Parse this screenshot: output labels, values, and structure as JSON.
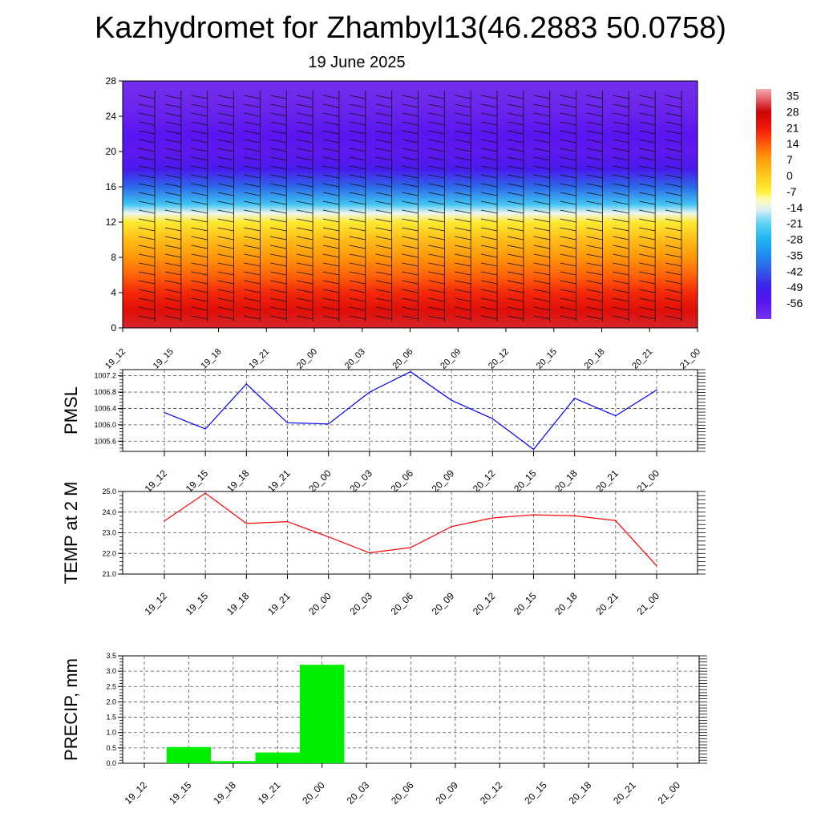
{
  "title": "Kazhydromet for Zhambyl13(46.2883 50.0758)",
  "subtitle": "19 June 2025",
  "time_labels": [
    "19_12",
    "19_15",
    "19_18",
    "19_21",
    "20_00",
    "20_03",
    "20_06",
    "20_09",
    "20_12",
    "20_15",
    "20_18",
    "20_21",
    "21_00"
  ],
  "chart_data": [
    {
      "type": "heatmap",
      "panel": "vertical-section",
      "x": [
        "19_12",
        "19_15",
        "19_18",
        "19_21",
        "20_00",
        "20_03",
        "20_06",
        "20_09",
        "20_12",
        "20_15",
        "20_18",
        "20_21",
        "21_00"
      ],
      "yticks": [
        0,
        4,
        8,
        12,
        16,
        20,
        24,
        28
      ],
      "ylim": [
        0,
        28
      ],
      "colorbar": {
        "labels": [
          "35",
          "28",
          "21",
          "14",
          "7",
          "0",
          "-7",
          "-14",
          "-21",
          "-28",
          "-35",
          "-42",
          "-49",
          "-56"
        ],
        "range": [
          -63,
          38
        ]
      },
      "temperature_profile": {
        "heights": [
          0,
          2,
          4,
          6,
          8,
          10,
          12,
          13,
          14,
          16,
          18,
          20,
          22,
          24,
          26,
          28
        ],
        "values": [
          30,
          24,
          19,
          13,
          8,
          2,
          -6,
          -14,
          -24,
          -40,
          -52,
          -57,
          -56,
          -59,
          -61,
          -62
        ]
      },
      "wind_barbs": true
    },
    {
      "type": "line",
      "panel": "pmsl",
      "ylabel": "PMSL",
      "x": [
        "19_12",
        "19_15",
        "19_18",
        "19_21",
        "20_00",
        "20_03",
        "20_06",
        "20_09",
        "20_12",
        "20_15",
        "20_18",
        "20_21",
        "21_00"
      ],
      "series": [
        {
          "values": [
            1006.3,
            1005.9,
            1007.0,
            1006.05,
            1006.02,
            1006.8,
            1007.3,
            1006.6,
            1006.15,
            1005.4,
            1006.65,
            1006.22,
            1006.85
          ],
          "color": "#0000ff"
        }
      ],
      "yticks": [
        "1005.6",
        "1006.0",
        "1006.4",
        "1006.8",
        "1007.2"
      ],
      "ylim": [
        1005.35,
        1007.35
      ],
      "grid": true
    },
    {
      "type": "line",
      "panel": "temp2m",
      "ylabel": "TEMP at 2 M",
      "x": [
        "19_12",
        "19_15",
        "19_18",
        "19_21",
        "20_00",
        "20_03",
        "20_06",
        "20_09",
        "20_12",
        "20_15",
        "20_18",
        "20_21",
        "21_00"
      ],
      "series": [
        {
          "values": [
            23.57,
            24.92,
            23.45,
            23.54,
            22.8,
            22.03,
            22.28,
            23.3,
            23.72,
            23.87,
            23.82,
            23.59,
            21.4
          ],
          "color": "#ff0000"
        }
      ],
      "yticks": [
        "21.0",
        "22.0",
        "23.0",
        "24.0",
        "25.0"
      ],
      "ylim": [
        21.0,
        25.0
      ],
      "grid": true
    },
    {
      "type": "bar",
      "panel": "precip",
      "ylabel": "PRECIP, mm",
      "categories": [
        "19_12",
        "19_15",
        "19_18",
        "19_21",
        "20_00",
        "20_03",
        "20_06",
        "20_09",
        "20_12",
        "20_15",
        "20_18",
        "20_21",
        "21_00"
      ],
      "values": [
        0,
        0.53,
        0.07,
        0.35,
        3.21,
        0,
        0,
        0,
        0,
        0,
        0,
        0,
        0
      ],
      "color": "#00ee00",
      "yticks": [
        "0.0",
        "0.5",
        "1.0",
        "1.5",
        "2.0",
        "2.5",
        "3.0",
        "3.5"
      ],
      "ylim": [
        0,
        3.5
      ],
      "grid": true
    }
  ]
}
